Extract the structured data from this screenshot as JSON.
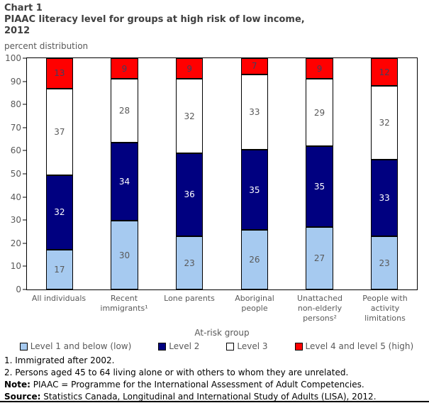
{
  "header": {
    "chart_label": "Chart 1",
    "title_line1": "PIAAC literacy level for groups at high risk of low income,",
    "title_line2": "2012",
    "units": "percent distribution"
  },
  "chart_data": {
    "type": "bar",
    "stacked": true,
    "title": "PIAAC literacy level for groups at high risk of low income, 2012",
    "xlabel": "At-risk group",
    "ylabel": "percent distribution",
    "ylim": [
      0,
      100
    ],
    "yticks": [
      0,
      10,
      20,
      30,
      40,
      50,
      60,
      70,
      80,
      90,
      100
    ],
    "grid": false,
    "legend_position": "bottom",
    "categories": [
      "All individuals",
      "Recent immigrants¹",
      "Lone parents",
      "Aboriginal people",
      "Unattached non-elderly persons²",
      "People with activity limitations"
    ],
    "series": [
      {
        "name": "Level 1 and below (low)",
        "color": "#A6CAF0",
        "label_color": "#595959",
        "values": [
          17,
          30,
          23,
          26,
          27,
          23
        ]
      },
      {
        "name": "Level 2",
        "color": "#000080",
        "label_color": "#FFFFFF",
        "values": [
          32,
          34,
          36,
          35,
          35,
          33
        ]
      },
      {
        "name": "Level 3",
        "color": "#FFFFFF",
        "label_color": "#595959",
        "values": [
          37,
          28,
          32,
          33,
          29,
          32
        ]
      },
      {
        "name": "Level 4 and level 5 (high)",
        "color": "#FF0000",
        "label_color": "#3F3F5F",
        "values": [
          13,
          9,
          9,
          7,
          9,
          12
        ]
      }
    ]
  },
  "footnotes": [
    {
      "prefix": "",
      "text": "1. Immigrated after 2002."
    },
    {
      "prefix": "",
      "text": "2. Persons aged 45 to 64 living alone or with others to whom they are unrelated."
    },
    {
      "prefix": "Note:",
      "text": " PIAAC = Programme for the International Assessment of Adult Competencies."
    },
    {
      "prefix": "Source:",
      "text": " Statistics Canada, Longitudinal and International Study of Adults (LISA), 2012."
    }
  ]
}
